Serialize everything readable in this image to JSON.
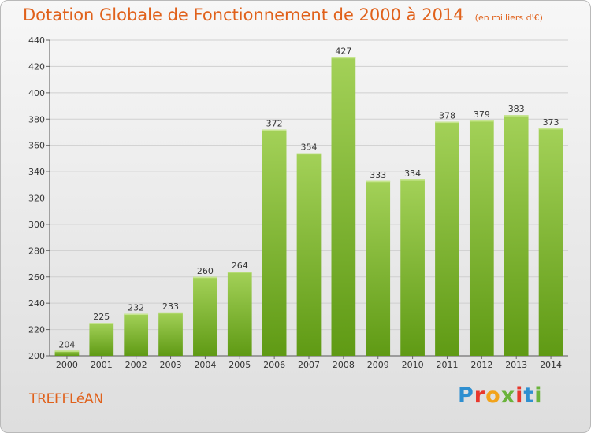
{
  "header": {
    "title": "Dotation Globale de Fonctionnement de 2000 à 2014",
    "unit": "(en milliers d'€)"
  },
  "footer": {
    "commune": "TREFFLéAN",
    "brand": "Proxiti"
  },
  "colors": {
    "title": "#e0611b",
    "bar_light": "#a3d158",
    "bar_dark": "#5f9a14",
    "grid": "#cfcfcf"
  },
  "chart_data": {
    "type": "bar",
    "title": "Dotation Globale de Fonctionnement de 2000 à 2014",
    "subtitle": "(en milliers d'€)",
    "xlabel": "",
    "ylabel": "",
    "categories": [
      "2000",
      "2001",
      "2002",
      "2003",
      "2004",
      "2005",
      "2006",
      "2007",
      "2008",
      "2009",
      "2010",
      "2011",
      "2012",
      "2013",
      "2014"
    ],
    "values": [
      204,
      225,
      232,
      233,
      260,
      264,
      372,
      354,
      427,
      333,
      334,
      378,
      379,
      383,
      373
    ],
    "ylim": [
      200,
      440
    ],
    "yticks": [
      200,
      220,
      240,
      260,
      280,
      300,
      320,
      340,
      360,
      380,
      400,
      420,
      440
    ],
    "grid": true,
    "legend": "none"
  }
}
